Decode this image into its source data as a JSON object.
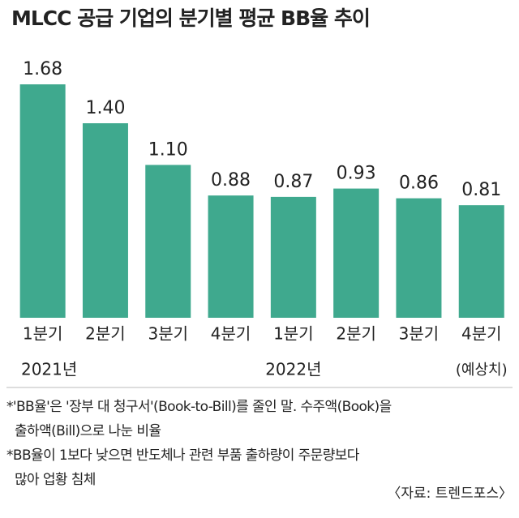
{
  "chart_data": {
    "type": "bar",
    "title": "MLCC 공급 기업의 분기별 평균 BB율 추이",
    "categories": [
      "1분기",
      "2분기",
      "3분기",
      "4분기",
      "1분기",
      "2분기",
      "3분기",
      "4분기"
    ],
    "sublabels": [
      "2021년",
      null,
      null,
      null,
      "2022년",
      null,
      null,
      "(예상치)"
    ],
    "values": [
      1.68,
      1.4,
      1.1,
      0.88,
      0.87,
      0.93,
      0.86,
      0.81
    ],
    "value_labels": [
      "1.68",
      "1.40",
      "1.10",
      "0.88",
      "0.87",
      "0.93",
      "0.86",
      "0.81"
    ],
    "color": "#3fa98e",
    "notes": [
      [
        "*'BB율'은 '장부 대 청구서'(Book-to-Bill)를 줄인 말. 수주액(Book)을",
        "출하액(Bill)으로 나눈 비율"
      ],
      [
        "*BB율이 1보다 낮으면 반도체나 관련 부품 출하량이 주문량보다",
        "많아 업황 침체"
      ]
    ],
    "source": "〈자료: 트렌드포스〉"
  }
}
